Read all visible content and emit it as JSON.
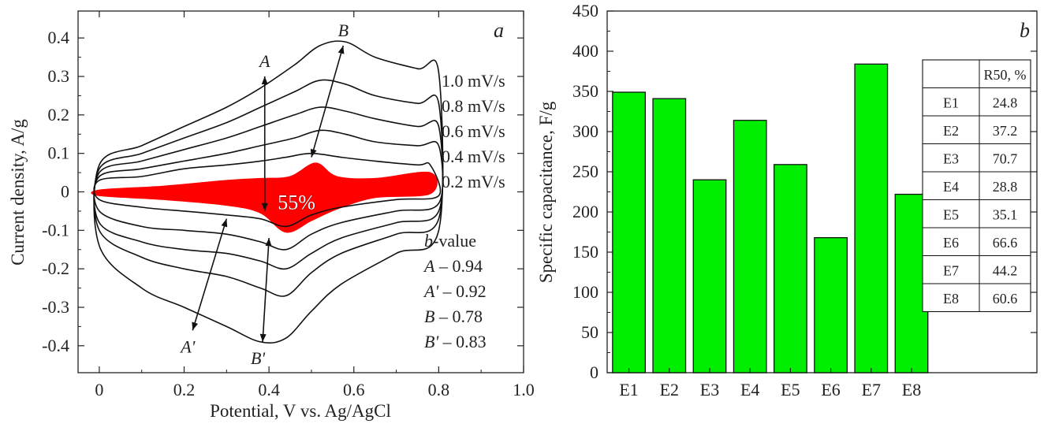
{
  "chart_data": [
    {
      "panel": "a",
      "type": "line",
      "xlabel": "Potential, V vs. Ag/AgCl",
      "ylabel": "Current density, A/g",
      "xlim": [
        -0.05,
        1.0
      ],
      "ylim": [
        -0.47,
        0.47
      ],
      "xticks": [
        "0",
        "0.2",
        "0.4",
        "0.6",
        "0.8",
        "1.0"
      ],
      "xtick_values": [
        0,
        0.2,
        0.4,
        0.6,
        0.8,
        1.0
      ],
      "yticks": [
        "0.4",
        "0.3",
        "0.2",
        "0.1",
        "0",
        "-0.1",
        "-0.2",
        "-0.3",
        "-0.4"
      ],
      "ytick_values": [
        0.4,
        0.3,
        0.2,
        0.1,
        0,
        -0.1,
        -0.2,
        -0.3,
        -0.4
      ],
      "grid": false,
      "series": [
        {
          "name": "0.2 mV/s",
          "x": [
            0.0,
            0.1,
            0.2,
            0.3,
            0.38,
            0.44,
            0.5,
            0.57,
            0.65,
            0.75,
            0.78,
            0.8,
            0.7,
            0.57,
            0.5,
            0.44,
            0.38,
            0.3,
            0.2,
            0.1,
            0.0
          ],
          "y": [
            0.03,
            0.04,
            0.06,
            0.07,
            0.08,
            0.09,
            0.1,
            0.09,
            0.08,
            0.07,
            0.07,
            -0.01,
            -0.02,
            -0.04,
            -0.06,
            -0.09,
            -0.07,
            -0.06,
            -0.05,
            -0.04,
            -0.02
          ]
        },
        {
          "name": "0.4 mV/s",
          "x": [
            0.0,
            0.1,
            0.2,
            0.3,
            0.38,
            0.46,
            0.52,
            0.58,
            0.65,
            0.75,
            0.8,
            0.8,
            0.7,
            0.57,
            0.5,
            0.44,
            0.38,
            0.3,
            0.2,
            0.1,
            0.0
          ],
          "y": [
            0.04,
            0.06,
            0.08,
            0.1,
            0.12,
            0.14,
            0.16,
            0.15,
            0.13,
            0.12,
            0.12,
            -0.03,
            -0.05,
            -0.08,
            -0.11,
            -0.15,
            -0.13,
            -0.11,
            -0.1,
            -0.09,
            -0.05
          ]
        },
        {
          "name": "0.6 mV/s",
          "x": [
            0.0,
            0.1,
            0.2,
            0.3,
            0.38,
            0.46,
            0.52,
            0.58,
            0.65,
            0.75,
            0.8,
            0.8,
            0.7,
            0.57,
            0.5,
            0.44,
            0.38,
            0.3,
            0.2,
            0.1,
            0.0
          ],
          "y": [
            0.05,
            0.08,
            0.11,
            0.14,
            0.17,
            0.2,
            0.22,
            0.21,
            0.19,
            0.17,
            0.17,
            -0.05,
            -0.08,
            -0.12,
            -0.16,
            -0.2,
            -0.18,
            -0.16,
            -0.15,
            -0.13,
            -0.08
          ]
        },
        {
          "name": "0.8 mV/s",
          "x": [
            0.0,
            0.1,
            0.2,
            0.3,
            0.38,
            0.46,
            0.52,
            0.58,
            0.65,
            0.75,
            0.8,
            0.8,
            0.7,
            0.57,
            0.5,
            0.44,
            0.38,
            0.3,
            0.2,
            0.1,
            0.0
          ],
          "y": [
            0.06,
            0.1,
            0.14,
            0.18,
            0.22,
            0.26,
            0.29,
            0.28,
            0.25,
            0.23,
            0.23,
            -0.07,
            -0.11,
            -0.16,
            -0.21,
            -0.27,
            -0.25,
            -0.22,
            -0.2,
            -0.17,
            -0.1
          ]
        },
        {
          "name": "1.0 mV/s",
          "x": [
            0.0,
            0.1,
            0.2,
            0.3,
            0.38,
            0.46,
            0.52,
            0.58,
            0.65,
            0.75,
            0.8,
            0.8,
            0.7,
            0.57,
            0.5,
            0.44,
            0.38,
            0.3,
            0.2,
            0.1,
            0.0
          ],
          "y": [
            0.07,
            0.12,
            0.17,
            0.22,
            0.27,
            0.33,
            0.38,
            0.39,
            0.35,
            0.32,
            0.31,
            -0.1,
            -0.16,
            -0.24,
            -0.31,
            -0.38,
            -0.39,
            -0.35,
            -0.3,
            -0.25,
            -0.14
          ]
        }
      ],
      "shaded_area": {
        "label": "55%",
        "color": "#ff0000",
        "x": [
          0.0,
          0.15,
          0.3,
          0.38,
          0.45,
          0.51,
          0.56,
          0.65,
          0.78,
          0.78,
          0.65,
          0.56,
          0.5,
          0.44,
          0.38,
          0.3,
          0.15,
          0.0
        ],
        "y": [
          0.005,
          0.015,
          0.03,
          0.035,
          0.04,
          0.075,
          0.04,
          0.035,
          0.05,
          -0.005,
          -0.015,
          -0.045,
          -0.075,
          -0.105,
          -0.055,
          -0.035,
          -0.02,
          -0.01
        ]
      },
      "legend": {
        "labels": [
          "1.0 mV/s",
          "0.8 mV/s",
          "0.6 mV/s",
          "0.4 mV/s",
          "0.2 mV/s"
        ],
        "placement": "right"
      },
      "arrows": [
        {
          "label": "A",
          "from": [
            0.39,
            -0.05
          ],
          "to": [
            0.39,
            0.3
          ]
        },
        {
          "label": "B",
          "from": [
            0.5,
            0.09
          ],
          "to": [
            0.575,
            0.38
          ]
        },
        {
          "label": "A'",
          "from": [
            0.3,
            -0.07
          ],
          "to": [
            0.22,
            -0.36
          ]
        },
        {
          "label": "B'",
          "from": [
            0.4,
            -0.12
          ],
          "to": [
            0.385,
            -0.39
          ]
        }
      ],
      "b_values": {
        "title_italic": "b",
        "title_rest": "-value",
        "items": [
          {
            "label": "A",
            "value": "– 0.94"
          },
          {
            "label": "A'",
            "value": "– 0.92"
          },
          {
            "label": "B",
            "value": "– 0.78"
          },
          {
            "label": "B'",
            "value": "– 0.83"
          }
        ]
      }
    },
    {
      "panel": "b",
      "type": "bar",
      "ylabel": "Specific capacitance, F/g",
      "xlabel": "",
      "ylim": [
        0,
        450
      ],
      "yticks": [
        "0",
        "50",
        "100",
        "150",
        "200",
        "250",
        "300",
        "350",
        "400",
        "450"
      ],
      "ytick_values": [
        0,
        50,
        100,
        150,
        200,
        250,
        300,
        350,
        400,
        450
      ],
      "categories": [
        "E1",
        "E2",
        "E3",
        "E4",
        "E5",
        "E6",
        "E7",
        "E8"
      ],
      "values": [
        349,
        341,
        240,
        314,
        259,
        168,
        384,
        222
      ],
      "bar_color": "#00ee00",
      "grid": false,
      "table": {
        "header": [
          "",
          "R50, %"
        ],
        "rows": [
          [
            "E1",
            "24.8"
          ],
          [
            "E2",
            "37.2"
          ],
          [
            "E3",
            "70.7"
          ],
          [
            "E4",
            "28.8"
          ],
          [
            "E5",
            "35.1"
          ],
          [
            "E6",
            "66.6"
          ],
          [
            "E7",
            "44.2"
          ],
          [
            "E8",
            "60.6"
          ]
        ]
      }
    }
  ]
}
